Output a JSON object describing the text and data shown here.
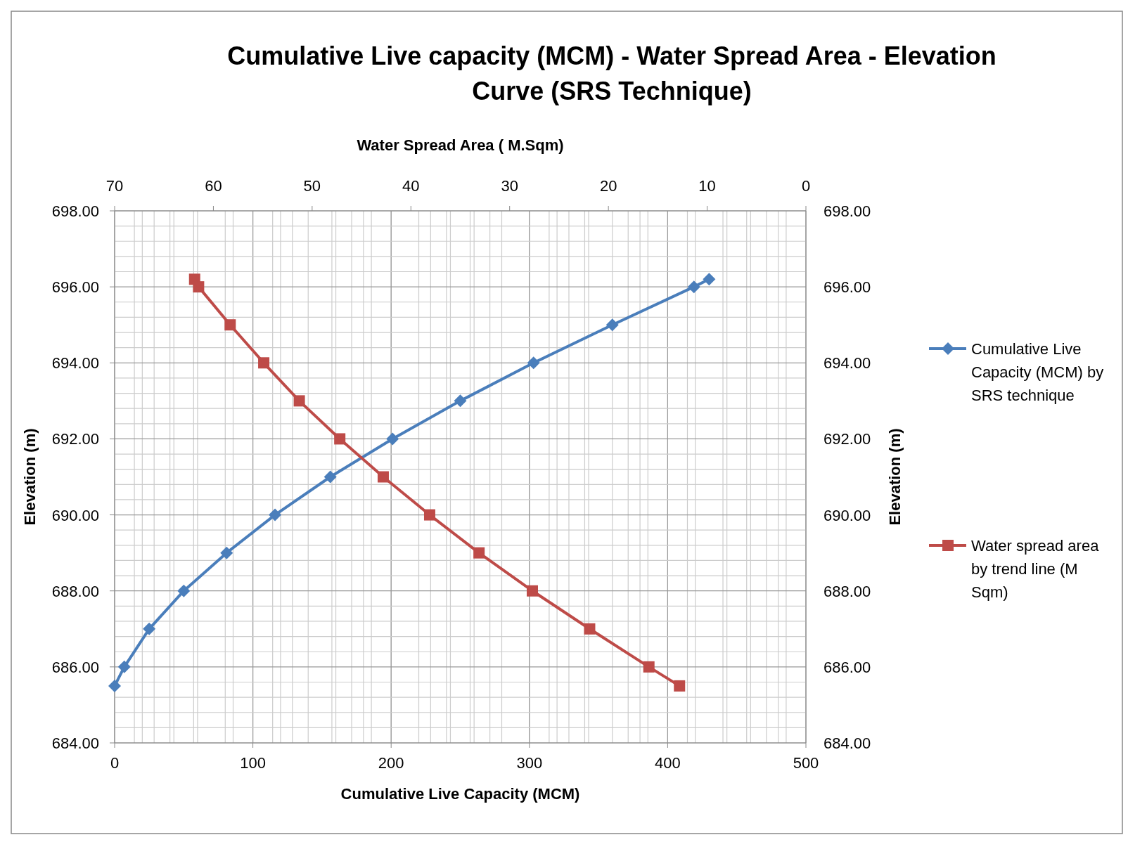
{
  "chart_data": {
    "type": "line",
    "title": "Cumulative Live capacity (MCM) - Water Spread Area - Elevation Curve (SRS Technique)",
    "xlabel": "Cumulative Live Capacity (MCM)",
    "x2label": "Water Spread Area ( M.Sqm)",
    "ylabel": "Elevation (m)",
    "y2label": "Elevation (m)",
    "xlim": [
      0,
      500
    ],
    "xticks": [
      0,
      100,
      200,
      300,
      400,
      500
    ],
    "x2lim": [
      70,
      0
    ],
    "x2ticks": [
      70,
      60,
      50,
      40,
      30,
      20,
      10,
      0
    ],
    "ylim": [
      684,
      698
    ],
    "yticks": [
      {
        "value": 684,
        "label": "684.00"
      },
      {
        "value": 686,
        "label": "686.00"
      },
      {
        "value": 688,
        "label": "688.00"
      },
      {
        "value": 690,
        "label": "690.00"
      },
      {
        "value": 692,
        "label": "692.00"
      },
      {
        "value": 694,
        "label": "694.00"
      },
      {
        "value": 696,
        "label": "696.00"
      },
      {
        "value": 698,
        "label": "698.00"
      }
    ],
    "y2lim": [
      684,
      698
    ],
    "y2ticks": [
      {
        "value": 684,
        "label": "684.00"
      },
      {
        "value": 686,
        "label": "686.00"
      },
      {
        "value": 688,
        "label": "688.00"
      },
      {
        "value": 690,
        "label": "690.00"
      },
      {
        "value": 692,
        "label": "692.00"
      },
      {
        "value": 694,
        "label": "694.00"
      },
      {
        "value": 696,
        "label": "696.00"
      },
      {
        "value": 698,
        "label": "698.00"
      }
    ],
    "grid": true,
    "legend": "right",
    "series": [
      {
        "name": "Cumulative Live Capacity (MCM) by SRS technique",
        "color": "#4a7ebb",
        "marker": "diamond",
        "x": [
          0,
          7,
          25,
          50,
          81,
          116,
          156,
          201,
          250,
          303,
          360,
          419,
          430
        ],
        "values": [
          685.5,
          686,
          687,
          688,
          689,
          690,
          691,
          692,
          693,
          694,
          695,
          696,
          696.2
        ]
      },
      {
        "name": "Water spread area by trend line (M Sqm)",
        "color": "#be4b48",
        "marker": "square",
        "axis": "x2",
        "x": [
          61.9,
          61.5,
          58.3,
          54.9,
          51.3,
          47.2,
          42.8,
          38.1,
          33.1,
          27.7,
          21.9,
          15.9,
          12.8
        ],
        "values": [
          696.2,
          696,
          695,
          694,
          693,
          692,
          691,
          690,
          689,
          688,
          687,
          686,
          685.5
        ]
      }
    ]
  }
}
